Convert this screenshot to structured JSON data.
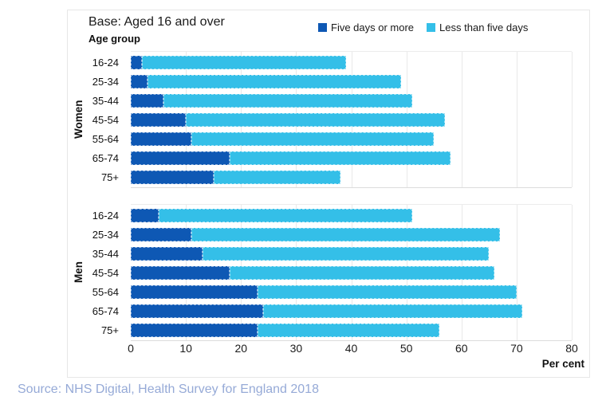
{
  "header": {
    "title": "Base: Aged 16 and over"
  },
  "legend": [
    {
      "label": "Five days or more",
      "color": "#0e58b4"
    },
    {
      "label": "Less than five days",
      "color": "#34bfe8"
    }
  ],
  "axis": {
    "group_title": "Age group",
    "x_title": "Per cent"
  },
  "source": {
    "text": "Source: NHS Digital, Health Survey for England 2018",
    "color": "#96aad7"
  },
  "chart_data": {
    "type": "bar",
    "orientation": "horizontal",
    "stacked": true,
    "title": "Base: Aged 16 and over",
    "xlabel": "Per cent",
    "ylabel": "Age group",
    "xlim": [
      0,
      80
    ],
    "x_ticks": [
      0,
      10,
      20,
      30,
      40,
      50,
      60,
      70,
      80
    ],
    "grid": true,
    "legend_position": "top-right",
    "groups": [
      {
        "name": "Women",
        "categories": [
          "16-24",
          "25-34",
          "35-44",
          "45-54",
          "55-64",
          "65-74",
          "75+"
        ],
        "series": [
          {
            "name": "Five days or more",
            "color": "#0e58b4",
            "values": [
              2,
              3,
              6,
              10,
              11,
              18,
              15
            ]
          },
          {
            "name": "Less than five days",
            "color": "#34bfe8",
            "values": [
              37,
              46,
              45,
              47,
              44,
              40,
              23
            ]
          }
        ],
        "totals": [
          39,
          49,
          51,
          57,
          55,
          58,
          38
        ]
      },
      {
        "name": "Men",
        "categories": [
          "16-24",
          "25-34",
          "35-44",
          "45-54",
          "55-64",
          "65-74",
          "75+"
        ],
        "series": [
          {
            "name": "Five days or more",
            "color": "#0e58b4",
            "values": [
              5,
              11,
              13,
              18,
              23,
              24,
              23
            ]
          },
          {
            "name": "Less than five days",
            "color": "#34bfe8",
            "values": [
              46,
              56,
              52,
              48,
              47,
              47,
              33
            ]
          }
        ],
        "totals": [
          51,
          67,
          65,
          66,
          70,
          71,
          56
        ]
      }
    ]
  }
}
